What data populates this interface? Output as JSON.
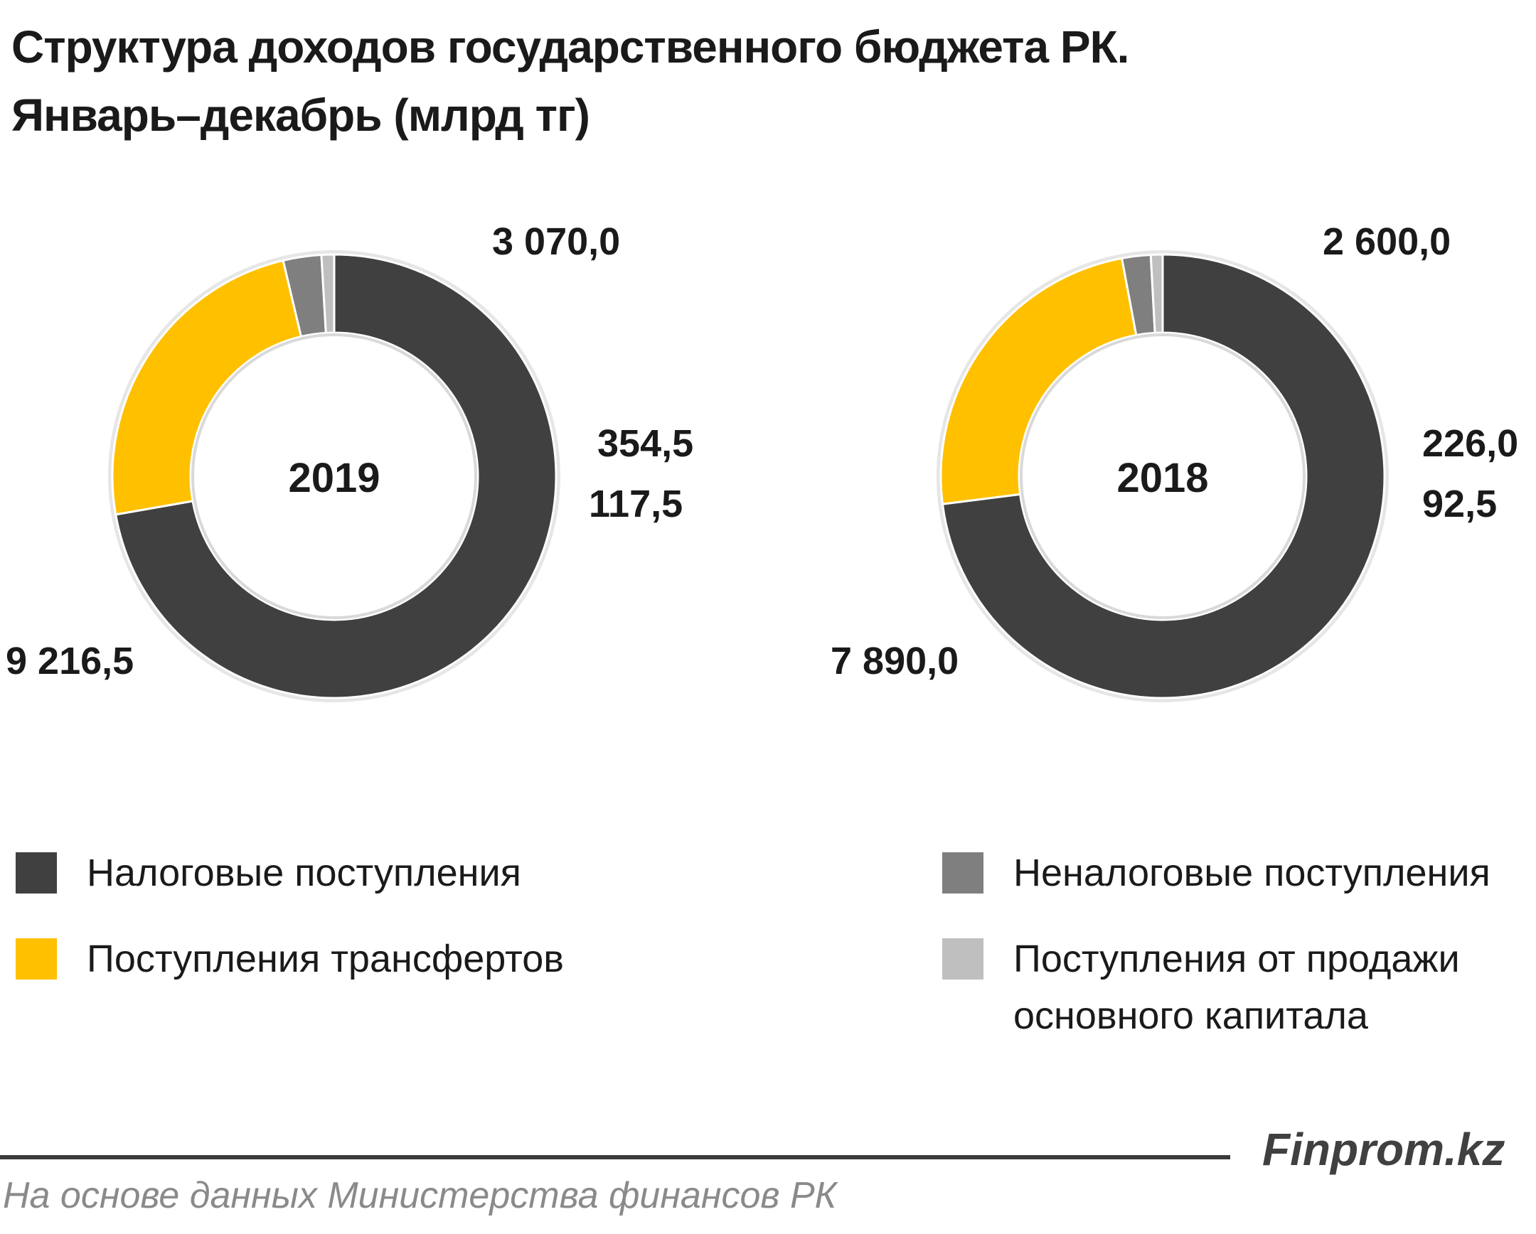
{
  "title": {
    "line1": "Структура доходов государственного бюджета РК.",
    "line2": "Январь–декабрь (млрд тг)"
  },
  "colors": {
    "tax": "#404040",
    "transfers": "#ffc000",
    "nontax": "#7f7f7f",
    "capital": "#bfbfbf"
  },
  "chart_data": [
    {
      "type": "pie",
      "center_label": "2019",
      "categories": [
        "Налоговые поступления",
        "Поступления трансфертов",
        "Неналоговые поступления",
        "Поступления от продажи основного капитала"
      ],
      "values": [
        9216.5,
        3070.0,
        354.5,
        117.5
      ],
      "data_labels": [
        "9 216,5",
        "3 070,0",
        "354,5",
        "117,5"
      ]
    },
    {
      "type": "pie",
      "center_label": "2018",
      "categories": [
        "Налоговые поступления",
        "Поступления трансфертов",
        "Неналоговые поступления",
        "Поступления от продажи основного капитала"
      ],
      "values": [
        7890.0,
        2600.0,
        226.0,
        92.5
      ],
      "data_labels": [
        "7 890,0",
        "2 600,0",
        "226,0",
        "92,5"
      ]
    }
  ],
  "legend": {
    "tax": "Налоговые поступления",
    "nontax": "Неналоговые поступления",
    "transfers": "Поступления трансфертов",
    "capital_line1": "Поступления от продажи",
    "capital_line2": "основного капитала"
  },
  "footer": {
    "brand": "Finprom.kz",
    "source": "На основе данных Министерства финансов РК"
  }
}
